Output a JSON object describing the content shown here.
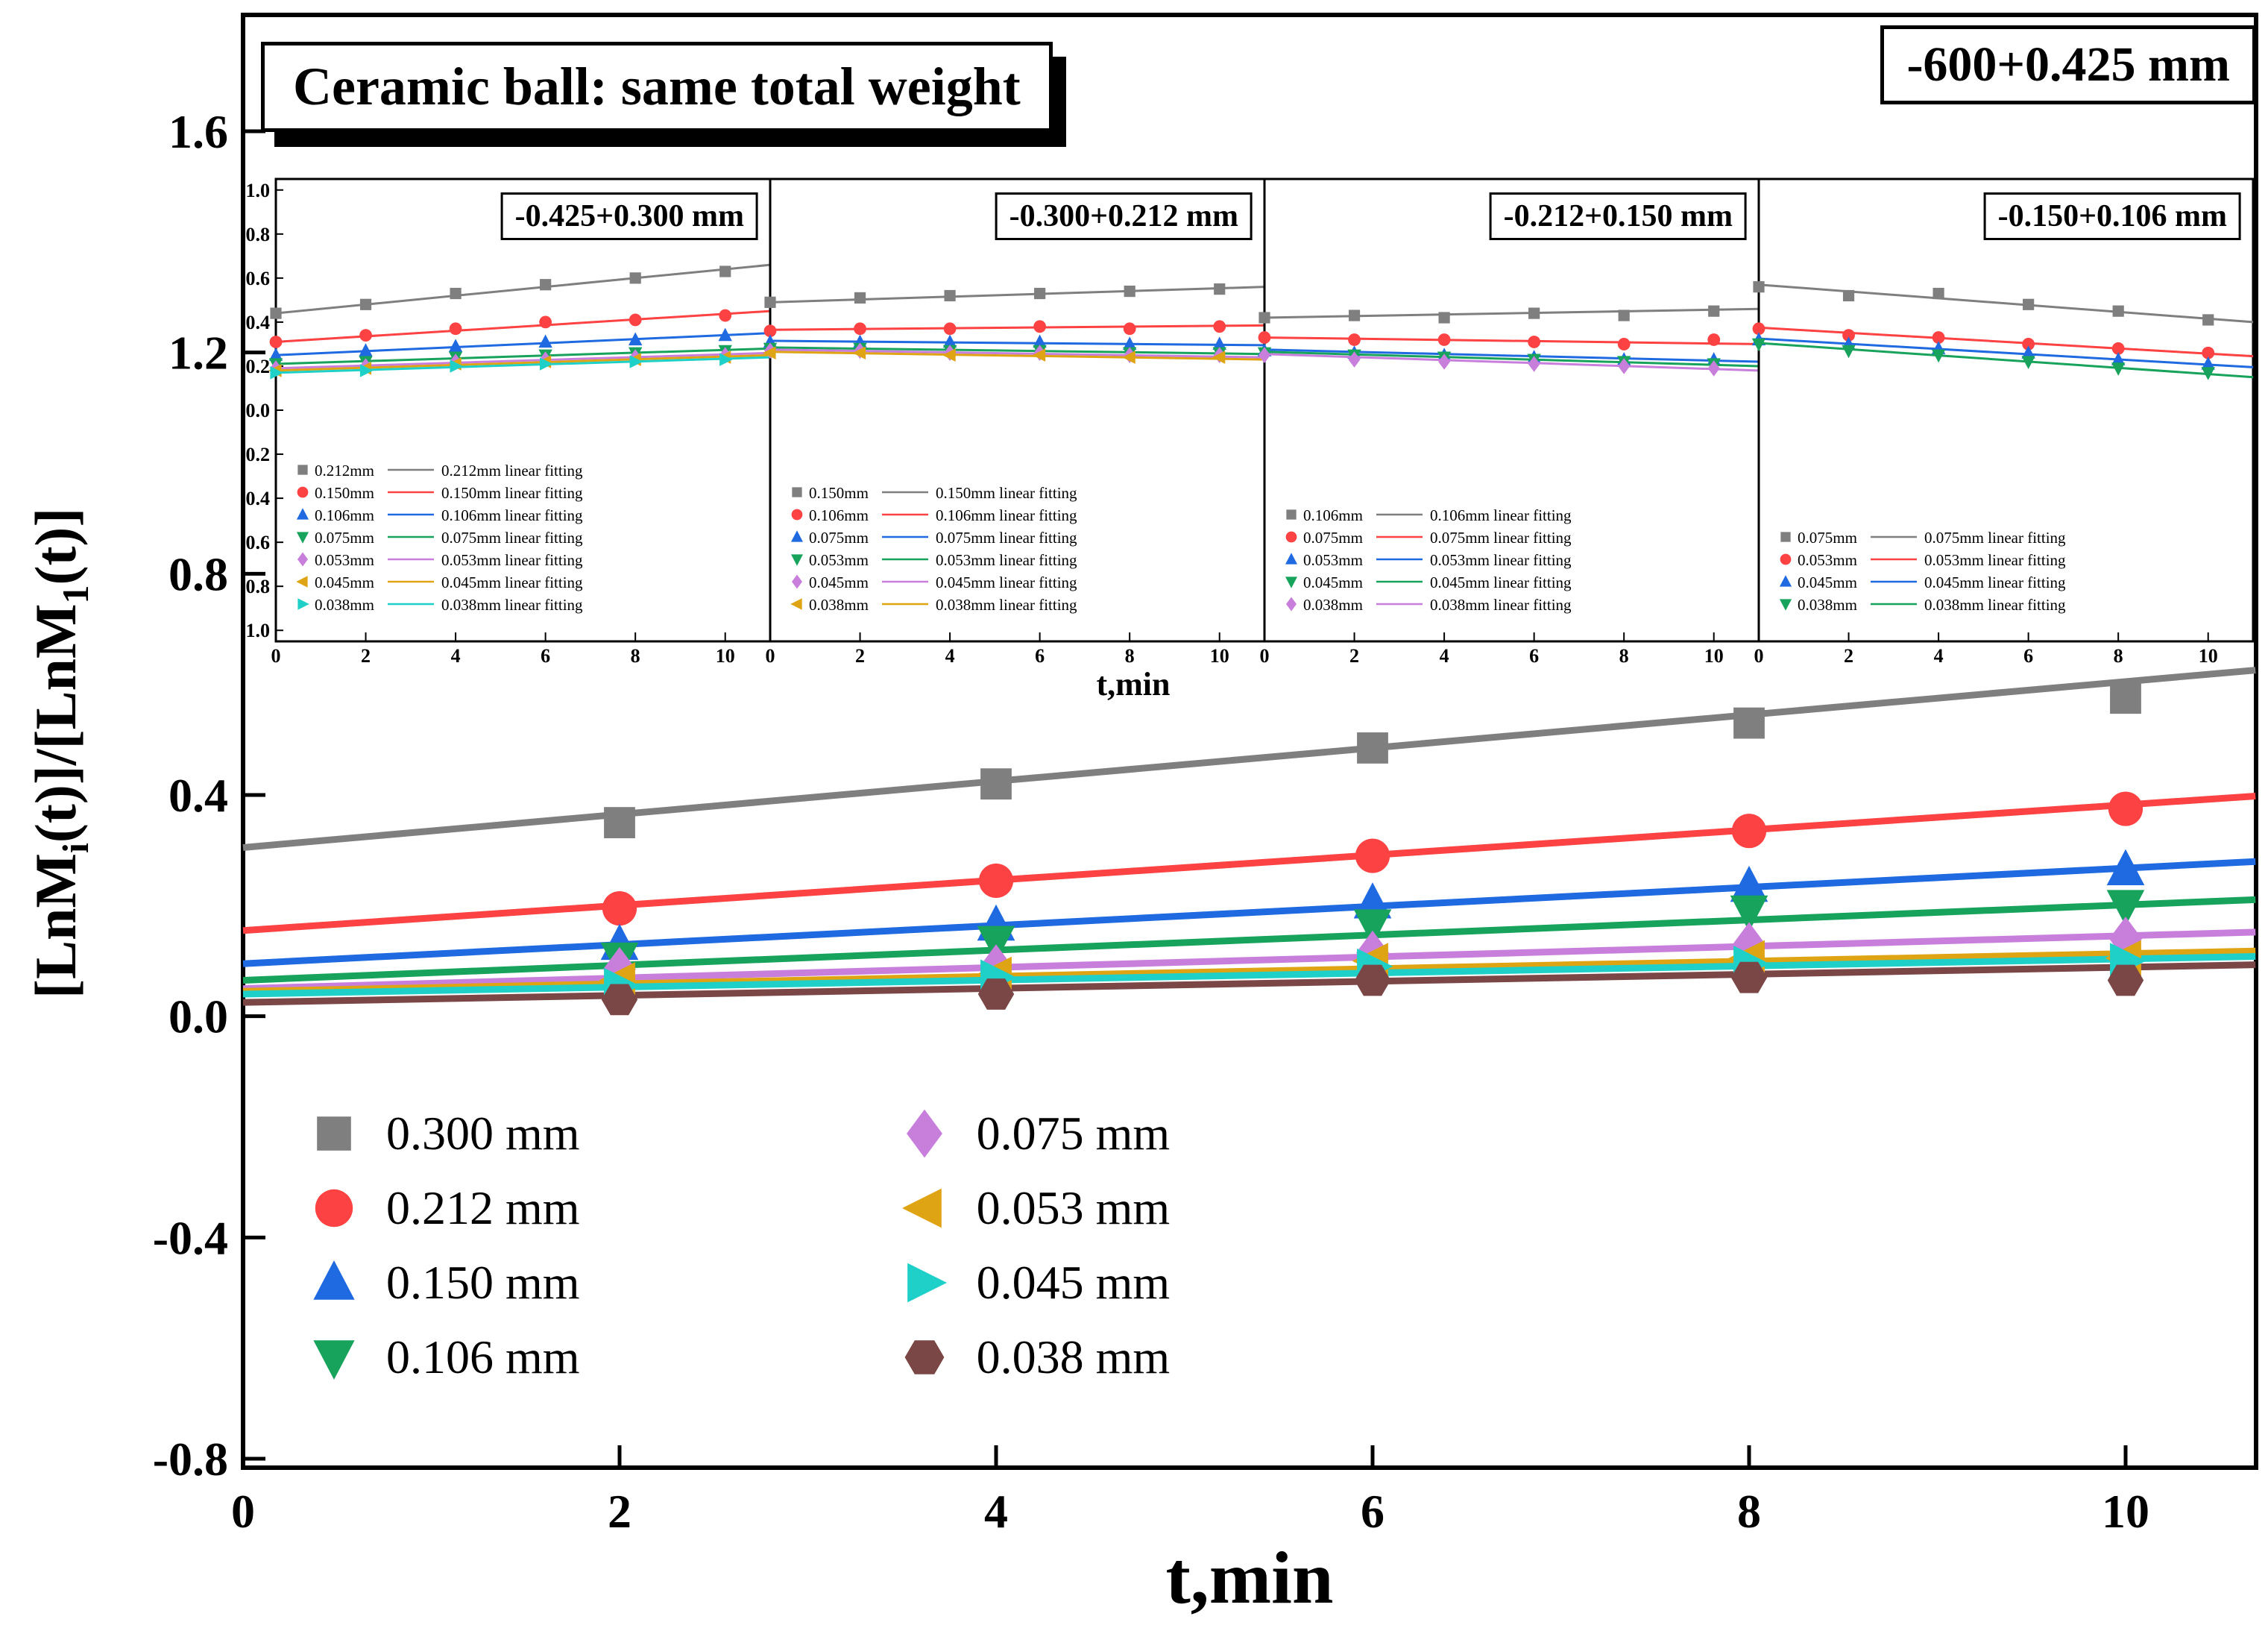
{
  "title": "Ceramic ball: same total weight",
  "corner_label": "-600+0.425 mm",
  "axes": {
    "xlabel": "t,min",
    "ylabel": {
      "p1": "[LnM",
      "sub1": "i",
      "p2": "(t)]/[LnM",
      "sub2": "1",
      "p3": "(t)]"
    }
  },
  "chart_data": {
    "type": "scatter",
    "main": {
      "xlim": [
        0,
        10.69
      ],
      "ylim": [
        -0.8,
        1.6
      ],
      "xticks": {
        "values": [
          0,
          2,
          4,
          6,
          8,
          10
        ],
        "labels": [
          "0",
          "2",
          "4",
          "6",
          "8",
          "10"
        ]
      },
      "yticks": {
        "values": [
          -0.8,
          -0.4,
          0.0,
          0.4,
          0.8,
          1.2,
          1.6
        ],
        "labels": [
          "-0.8",
          "-0.4",
          "0.0",
          "0.4",
          "0.8",
          "1.2",
          "1.6"
        ]
      },
      "x": [
        2,
        4,
        6,
        8,
        10
      ],
      "series": [
        {
          "label": "0.300 mm",
          "color": "#7f7f7f",
          "marker": "square",
          "y": [
            0.35,
            0.42,
            0.485,
            0.53,
            0.575
          ],
          "fit": [
            0.305,
            0.635
          ]
        },
        {
          "label": "0.212 mm",
          "color": "#fc4242",
          "marker": "circle",
          "y": [
            0.195,
            0.245,
            0.29,
            0.335,
            0.375
          ],
          "fit": [
            0.155,
            0.405
          ]
        },
        {
          "label": "0.150 mm",
          "color": "#1f6ae0",
          "marker": "triangle-up",
          "y": [
            0.13,
            0.165,
            0.205,
            0.235,
            0.265
          ],
          "fit": [
            0.095,
            0.285
          ]
        },
        {
          "label": "0.106 mm",
          "color": "#17a35c",
          "marker": "triangle-down",
          "y": [
            0.105,
            0.135,
            0.165,
            0.19,
            0.2
          ],
          "fit": [
            0.065,
            0.215
          ]
        },
        {
          "label": "0.075 mm",
          "color": "#c87fdc",
          "marker": "diamond",
          "y": [
            0.085,
            0.09,
            0.115,
            0.13,
            0.14
          ],
          "fit": [
            0.05,
            0.155
          ]
        },
        {
          "label": "0.053 mm",
          "color": "#dfa414",
          "marker": "triangle-left",
          "y": [
            0.065,
            0.075,
            0.1,
            0.105,
            0.105
          ],
          "fit": [
            0.045,
            0.12
          ]
        },
        {
          "label": "0.045 mm",
          "color": "#1fd0c8",
          "marker": "triangle-right",
          "y": [
            0.055,
            0.07,
            0.09,
            0.095,
            0.1
          ],
          "fit": [
            0.04,
            0.11
          ]
        },
        {
          "label": "0.038 mm",
          "color": "#7a4646",
          "marker": "hexagon",
          "y": [
            0.03,
            0.04,
            0.065,
            0.07,
            0.065
          ],
          "fit": [
            0.025,
            0.095
          ]
        }
      ]
    },
    "inset_axis": {
      "xlim": [
        0,
        11
      ],
      "ylim": [
        -1.05,
        1.05
      ],
      "x": [
        0,
        2,
        4,
        6,
        8,
        10
      ],
      "xticklabels": [
        "0",
        "2",
        "4",
        "6",
        "8",
        "10"
      ],
      "yticklabels": [
        "1.0",
        "0.8",
        "0.6",
        "0.4",
        "0.2",
        "0.0",
        "0.2",
        "0.4",
        "0.6",
        "0.8",
        "1.0"
      ],
      "xlabel": "t,min"
    },
    "insets": [
      {
        "label": "-0.425+0.300 mm",
        "series": [
          {
            "label": "0.212mm",
            "fit_label": "0.212mm linear fitting",
            "color": "#7f7f7f",
            "marker": "square",
            "y": [
              0.44,
              0.48,
              0.53,
              0.57,
              0.6,
              0.63
            ],
            "fit": [
              0.44,
              0.66
            ]
          },
          {
            "label": "0.150mm",
            "fit_label": "0.150mm linear fitting",
            "color": "#fc4242",
            "marker": "circle",
            "y": [
              0.31,
              0.34,
              0.37,
              0.4,
              0.41,
              0.43
            ],
            "fit": [
              0.31,
              0.45
            ]
          },
          {
            "label": "0.106mm",
            "fit_label": "0.106mm linear fitting",
            "color": "#1f6ae0",
            "marker": "triangle-up",
            "y": [
              0.25,
              0.27,
              0.29,
              0.31,
              0.32,
              0.34
            ],
            "fit": [
              0.25,
              0.35
            ]
          },
          {
            "label": "0.075mm",
            "fit_label": "0.075mm linear fitting",
            "color": "#17a35c",
            "marker": "triangle-down",
            "y": [
              0.21,
              0.22,
              0.24,
              0.25,
              0.26,
              0.27
            ],
            "fit": [
              0.21,
              0.28
            ]
          },
          {
            "label": "0.053mm",
            "fit_label": "0.053mm linear fitting",
            "color": "#c87fdc",
            "marker": "diamond",
            "y": [
              0.19,
              0.2,
              0.22,
              0.23,
              0.24,
              0.25
            ],
            "fit": [
              0.19,
              0.26
            ]
          },
          {
            "label": "0.045mm",
            "fit_label": "0.045mm linear fitting",
            "color": "#dfa414",
            "marker": "triangle-left",
            "y": [
              0.18,
              0.19,
              0.21,
              0.22,
              0.23,
              0.24
            ],
            "fit": [
              0.18,
              0.25
            ]
          },
          {
            "label": "0.038mm",
            "fit_label": "0.038mm linear fitting",
            "color": "#1fd0c8",
            "marker": "triangle-right",
            "y": [
              0.17,
              0.18,
              0.2,
              0.21,
              0.22,
              0.23
            ],
            "fit": [
              0.17,
              0.24
            ]
          }
        ]
      },
      {
        "label": "-0.300+0.212 mm",
        "series": [
          {
            "label": "0.150mm",
            "fit_label": "0.150mm linear fitting",
            "color": "#7f7f7f",
            "marker": "square",
            "y": [
              0.49,
              0.51,
              0.52,
              0.53,
              0.54,
              0.55
            ],
            "fit": [
              0.49,
              0.56
            ]
          },
          {
            "label": "0.106mm",
            "fit_label": "0.106mm linear fitting",
            "color": "#fc4242",
            "marker": "circle",
            "y": [
              0.36,
              0.37,
              0.37,
              0.38,
              0.37,
              0.38
            ],
            "fit": [
              0.365,
              0.385
            ]
          },
          {
            "label": "0.075mm",
            "fit_label": "0.075mm linear fitting",
            "color": "#1f6ae0",
            "marker": "triangle-up",
            "y": [
              0.31,
              0.31,
              0.31,
              0.31,
              0.3,
              0.3
            ],
            "fit": [
              0.315,
              0.295
            ]
          },
          {
            "label": "0.053mm",
            "fit_label": "0.053mm linear fitting",
            "color": "#17a35c",
            "marker": "triangle-down",
            "y": [
              0.28,
              0.28,
              0.27,
              0.27,
              0.26,
              0.26
            ],
            "fit": [
              0.285,
              0.255
            ]
          },
          {
            "label": "0.045mm",
            "fit_label": "0.045mm linear fitting",
            "color": "#c87fdc",
            "marker": "diamond",
            "y": [
              0.27,
              0.27,
              0.26,
              0.26,
              0.25,
              0.25
            ],
            "fit": [
              0.275,
              0.24
            ]
          },
          {
            "label": "0.038mm",
            "fit_label": "0.038mm linear fitting",
            "color": "#dfa414",
            "marker": "triangle-left",
            "y": [
              0.26,
              0.26,
              0.25,
              0.25,
              0.24,
              0.24
            ],
            "fit": [
              0.265,
              0.23
            ]
          }
        ]
      },
      {
        "label": "-0.212+0.150 mm",
        "series": [
          {
            "label": "0.106mm",
            "fit_label": "0.106mm linear fitting",
            "color": "#7f7f7f",
            "marker": "square",
            "y": [
              0.42,
              0.43,
              0.42,
              0.44,
              0.43,
              0.45
            ],
            "fit": [
              0.42,
              0.46
            ]
          },
          {
            "label": "0.075mm",
            "fit_label": "0.075mm linear fitting",
            "color": "#fc4242",
            "marker": "circle",
            "y": [
              0.33,
              0.32,
              0.32,
              0.31,
              0.3,
              0.32
            ],
            "fit": [
              0.33,
              0.3
            ]
          },
          {
            "label": "0.053mm",
            "fit_label": "0.053mm linear fitting",
            "color": "#1f6ae0",
            "marker": "triangle-up",
            "y": [
              0.27,
              0.26,
              0.25,
              0.24,
              0.23,
              0.23
            ],
            "fit": [
              0.275,
              0.22
            ]
          },
          {
            "label": "0.045mm",
            "fit_label": "0.045mm linear fitting",
            "color": "#17a35c",
            "marker": "triangle-down",
            "y": [
              0.26,
              0.25,
              0.24,
              0.23,
              0.22,
              0.21
            ],
            "fit": [
              0.265,
              0.2
            ]
          },
          {
            "label": "0.038mm",
            "fit_label": "0.038mm linear fitting",
            "color": "#c87fdc",
            "marker": "diamond",
            "y": [
              0.25,
              0.23,
              0.22,
              0.21,
              0.2,
              0.19
            ],
            "fit": [
              0.255,
              0.18
            ]
          }
        ]
      },
      {
        "label": "-0.150+0.106 mm",
        "series": [
          {
            "label": "0.075mm",
            "fit_label": "0.075mm linear fitting",
            "color": "#7f7f7f",
            "marker": "square",
            "y": [
              0.56,
              0.52,
              0.53,
              0.48,
              0.45,
              0.41
            ],
            "fit": [
              0.57,
              0.4
            ]
          },
          {
            "label": "0.053mm",
            "fit_label": "0.053mm linear fitting",
            "color": "#fc4242",
            "marker": "circle",
            "y": [
              0.37,
              0.34,
              0.33,
              0.3,
              0.28,
              0.26
            ],
            "fit": [
              0.375,
              0.245
            ]
          },
          {
            "label": "0.045mm",
            "fit_label": "0.045mm linear fitting",
            "color": "#1f6ae0",
            "marker": "triangle-up",
            "y": [
              0.32,
              0.3,
              0.28,
              0.26,
              0.23,
              0.21
            ],
            "fit": [
              0.325,
              0.195
            ]
          },
          {
            "label": "0.038mm",
            "fit_label": "0.038mm linear fitting",
            "color": "#17a35c",
            "marker": "triangle-down",
            "y": [
              0.3,
              0.27,
              0.25,
              0.22,
              0.19,
              0.17
            ],
            "fit": [
              0.305,
              0.15
            ]
          }
        ]
      }
    ]
  }
}
